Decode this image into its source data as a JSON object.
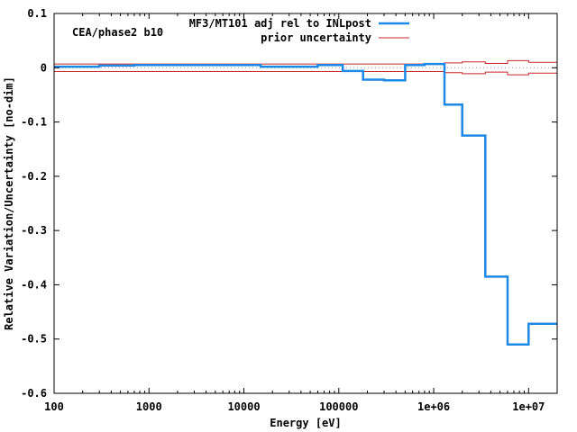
{
  "chart_data": {
    "type": "line",
    "annotation": "CEA/phase2 b10",
    "xlabel": "Energy [eV]",
    "ylabel": "Relative Variation/Uncertainty [no-dim]",
    "xscale": "log",
    "xlim": [
      100,
      20000000
    ],
    "ylim": [
      -0.6,
      0.1
    ],
    "x_ticks": [
      {
        "value": 100,
        "label": "100"
      },
      {
        "value": 1000,
        "label": "1000"
      },
      {
        "value": 10000,
        "label": "10000"
      },
      {
        "value": 100000,
        "label": "100000"
      },
      {
        "value": 1000000,
        "label": "1e+06"
      },
      {
        "value": 10000000,
        "label": "1e+07"
      }
    ],
    "y_ticks": [
      {
        "value": 0.1,
        "label": "0.1"
      },
      {
        "value": 0,
        "label": "0"
      },
      {
        "value": -0.1,
        "label": "-0.1"
      },
      {
        "value": -0.2,
        "label": "-0.2"
      },
      {
        "value": -0.3,
        "label": "-0.3"
      },
      {
        "value": -0.4,
        "label": "-0.4"
      },
      {
        "value": -0.5,
        "label": "-0.5"
      },
      {
        "value": -0.6,
        "label": "-0.6"
      }
    ],
    "legend_position": "top-right",
    "series": [
      {
        "name": "MF3/MT101 adj rel to INLpost",
        "color": "#1e88e5",
        "style": "step",
        "edges": [
          100,
          300,
          700,
          15000,
          60000,
          110000,
          180000,
          300000,
          500000,
          800000,
          1300000,
          2000000,
          3500000,
          6000000,
          10000000,
          20000000
        ],
        "values": [
          0.002,
          0.004,
          0.005,
          0.002,
          0.005,
          -0.006,
          -0.022,
          -0.023,
          0.005,
          0.007,
          -0.068,
          -0.125,
          -0.385,
          -0.51,
          -0.472
        ]
      },
      {
        "name": "prior uncertainty",
        "color": "#c62828",
        "style": "step",
        "edges": [
          100,
          300,
          700,
          15000,
          60000,
          110000,
          180000,
          300000,
          500000,
          800000,
          1300000,
          2000000,
          3500000,
          6000000,
          10000000,
          20000000
        ],
        "values": [
          0.007,
          0.007,
          0.007,
          0.007,
          0.007,
          0.007,
          0.007,
          0.007,
          0.007,
          0.007,
          0.009,
          0.011,
          0.008,
          0.013,
          0.01
        ],
        "mirrored": true
      }
    ],
    "zero_line": {
      "style": "dotted",
      "color": "#999999"
    }
  }
}
